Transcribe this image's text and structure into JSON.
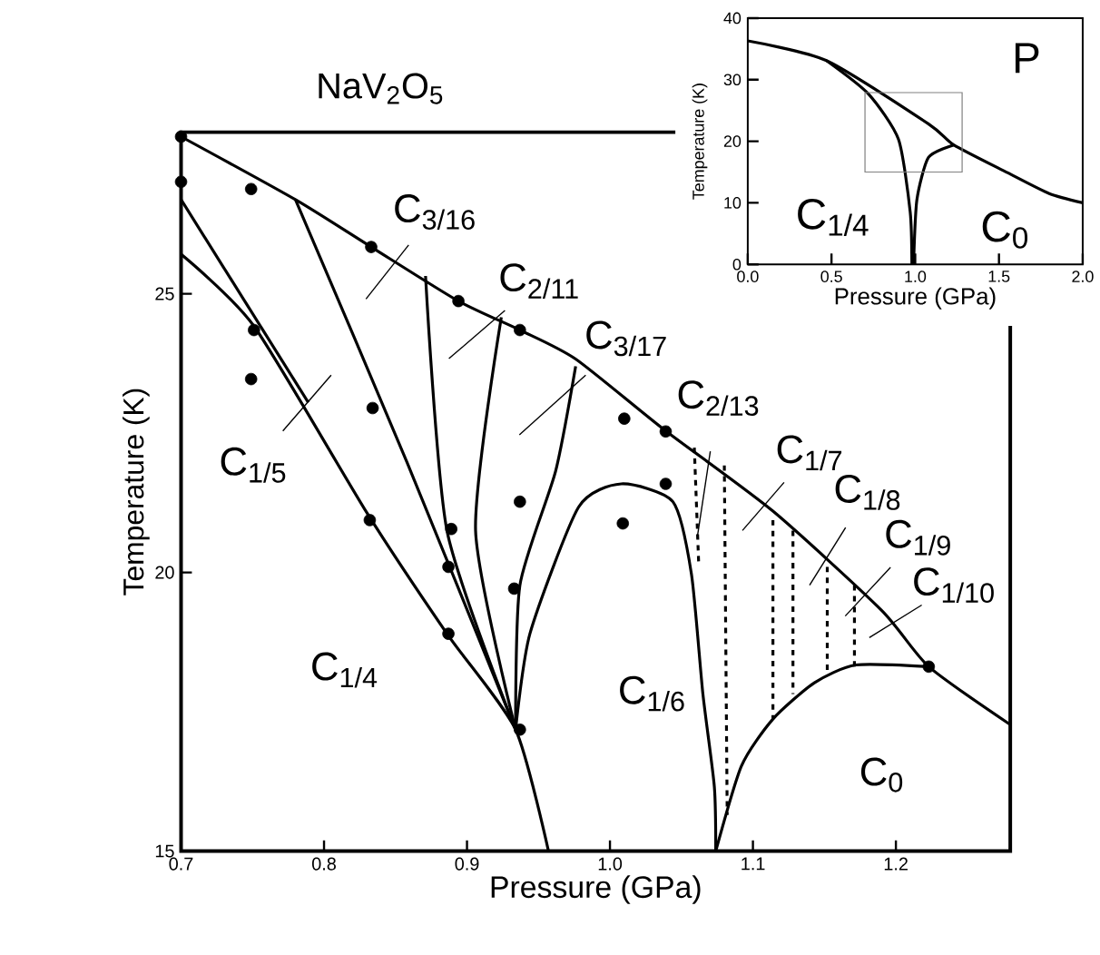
{
  "chart_data": [
    {
      "type": "line",
      "title": "NaV$_{2}$O$_{5}$",
      "xlabel": "Pressure (GPa)",
      "ylabel": "Temperature (K)",
      "xlim": [
        0.7,
        1.28
      ],
      "ylim": [
        15,
        27.9
      ],
      "xticks": [
        {
          "value": 0.7,
          "label": "0.7"
        },
        {
          "value": 0.8,
          "label": "0.8"
        },
        {
          "value": 0.9,
          "label": "0.9"
        },
        {
          "value": 1.0,
          "label": "1.0"
        },
        {
          "value": 1.1,
          "label": "1.1"
        },
        {
          "value": 1.2,
          "label": "1.2"
        }
      ],
      "yticks": [
        15,
        20,
        25
      ],
      "series": [
        {
          "type": "line",
          "color": "#000000",
          "x": [
            0.7,
            0.78,
            0.833,
            0.894,
            0.937,
            0.976,
            1.038,
            1.114,
            1.19,
            1.223,
            1.28
          ],
          "values": [
            27.82,
            26.69,
            25.84,
            24.87,
            24.35,
            23.83,
            22.56,
            21.1,
            19.32,
            18.31,
            17.27
          ]
        },
        {
          "type": "line",
          "color": "#000000",
          "x": [
            0.7,
            0.751,
            0.83,
            0.886,
            0.934,
            0.957
          ],
          "values": [
            25.71,
            24.42,
            21.07,
            18.9,
            17.18,
            15
          ]
        },
        {
          "type": "line",
          "color": "#000000",
          "x": [
            0.7,
            0.789
          ],
          "values": [
            26.69,
            23.05
          ]
        },
        {
          "type": "line",
          "color": "#000000",
          "x": [
            0.78,
            0.858,
            0.934
          ],
          "values": [
            26.69,
            21.98,
            17.18
          ]
        },
        {
          "type": "line",
          "color": "#000000",
          "x": [
            0.871,
            0.886,
            0.934
          ],
          "values": [
            25.32,
            20.75,
            17.18
          ]
        },
        {
          "type": "line",
          "color": "#000000",
          "x": [
            0.924,
            0.906,
            0.934
          ],
          "values": [
            24.58,
            20.75,
            17.18
          ]
        },
        {
          "type": "line",
          "color": "#000000",
          "x": [
            0.976,
            0.962,
            0.937,
            0.934
          ],
          "values": [
            23.7,
            21.82,
            19.77,
            17.18
          ]
        },
        {
          "color": "#000000",
          "x": [
            0.934,
            0.944,
            0.978,
            1.008,
            1.044,
            1.057,
            1.065,
            1.073,
            1.074
          ],
          "values": [
            17.18,
            18.9,
            21.17,
            21.59,
            21.27,
            19.97,
            17.82,
            16.16,
            15
          ]
        },
        {
          "type": "line",
          "color": "#000000",
          "x": [
            1.074,
            1.092,
            1.114,
            1.143,
            1.172,
            1.223
          ],
          "values": [
            15,
            16.53,
            17.37,
            18.02,
            18.34,
            18.31
          ]
        },
        {
          "type": "line",
          "color": "#000000",
          "line_style": "dashed",
          "x": [
            1.059,
            1.062
          ],
          "values": [
            22.24,
            20.2
          ]
        },
        {
          "type": "line",
          "color": "#000000",
          "line_style": "dashed",
          "x": [
            1.08,
            1.082
          ],
          "values": [
            21.92,
            15.65
          ]
        },
        {
          "type": "line",
          "color": "#000000",
          "line_style": "dashed",
          "x": [
            1.114,
            1.114
          ],
          "values": [
            20.94,
            17.37
          ]
        },
        {
          "type": "line",
          "color": "#000000",
          "line_style": "dashed",
          "x": [
            1.128,
            1.128
          ],
          "values": [
            20.75,
            17.82
          ]
        },
        {
          "type": "line",
          "color": "#000000",
          "line_style": "dashed",
          "x": [
            1.152,
            1.152
          ],
          "values": [
            20.1,
            18.15
          ]
        },
        {
          "type": "line",
          "color": "#000000",
          "line_style": "dashed",
          "x": [
            1.171,
            1.171
          ],
          "values": [
            19.77,
            18.25
          ]
        },
        {
          "type": "scatter",
          "color": "#000000",
          "marker": "circle",
          "x": [
            0.7,
            0.7,
            0.749,
            0.833,
            0.894,
            0.937,
            0.749,
            0.751,
            0.834,
            0.832,
            0.889,
            0.887,
            0.887,
            0.937,
            0.933,
            0.937,
            1.01,
            1.039,
            1.039,
            1.009,
            1.223
          ],
          "values": [
            27.82,
            27.01,
            26.88,
            25.84,
            24.87,
            24.35,
            23.47,
            24.35,
            22.95,
            20.94,
            20.78,
            20.1,
            18.9,
            21.27,
            19.71,
            17.18,
            22.76,
            22.53,
            21.59,
            20.88,
            18.31
          ]
        }
      ],
      "annotations": [
        "C$_{1/4}$",
        "C$_{1/5}$",
        "C$_{3/16}$",
        "C$_{2/11}$",
        "C$_{3/17}$",
        {
          "text": "C$_{2/13}$",
          "x": 1.061,
          "y": 20.62
        },
        "C$_{1/7}$",
        "C$_{1/8}$",
        "C$_{1/9}$",
        "C$_{1/10}$",
        "C$_{1/6}$",
        "C$_{0}$"
      ]
    },
    {
      "type": "line",
      "xlabel": "Pressure (GPa)",
      "ylabel": "Temperature (K)",
      "xlim": [
        0,
        2.0
      ],
      "ylim": [
        0,
        40
      ],
      "xticks": [
        {
          "value": 0,
          "label": "0.0"
        },
        {
          "value": 0.5,
          "label": "0.5"
        },
        {
          "value": 1.0,
          "label": "1.0"
        },
        {
          "value": 1.5,
          "label": "1.5"
        },
        {
          "value": 2.0,
          "label": "2.0"
        }
      ],
      "yticks": [
        0,
        10,
        20,
        30,
        40
      ],
      "series": [
        {
          "type": "line",
          "color": "#000000",
          "x": [
            0,
            0.47,
            1.08,
            1.23,
            1.55,
            1.8,
            2.0
          ],
          "values": [
            36.3,
            33.1,
            22.8,
            19.4,
            14.9,
            11.5,
            10.0
          ]
        },
        {
          "type": "line",
          "color": "#000000",
          "x": [
            0.47,
            0.72,
            0.9,
            0.97,
            0.98
          ],
          "values": [
            33.1,
            27.7,
            20.3,
            8.5,
            0
          ]
        },
        {
          "type": "line",
          "color": "#000000",
          "x": [
            0.99,
            1.01,
            1.08,
            1.23
          ],
          "values": [
            0,
            10.5,
            17.4,
            19.4
          ]
        }
      ],
      "annotations": [
        "P",
        "C$_{1/4}$",
        "C$_{0}$"
      ]
    }
  ]
}
